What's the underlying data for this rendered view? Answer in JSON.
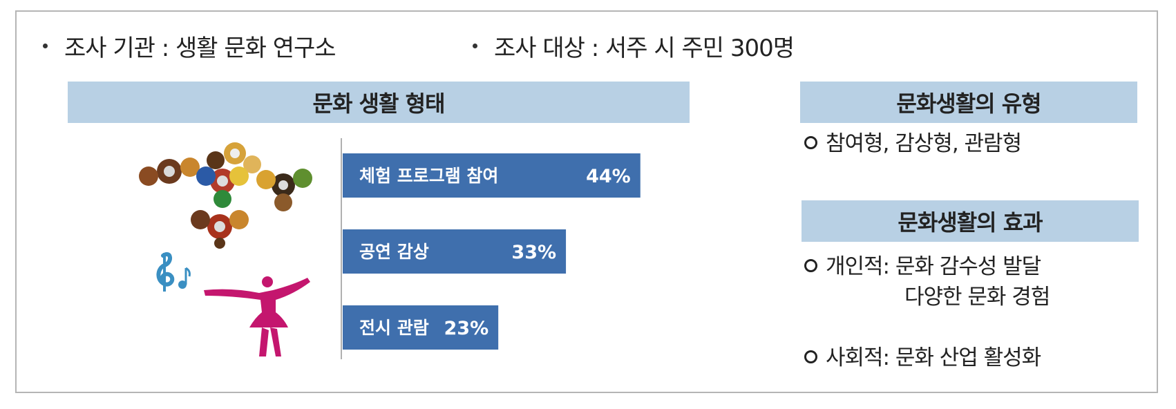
{
  "header": {
    "org": "조사 기관 : 생활 문화 연구소",
    "target": "조사 대상 : 서주 시 주민 300명"
  },
  "left_panel": {
    "title": "문화 생활 형태"
  },
  "chart_data": {
    "type": "bar",
    "orientation": "horizontal",
    "title": "문화 생활 형태",
    "categories": [
      "체험 프로그램 참여",
      "공연 감상",
      "전시 관람"
    ],
    "values": [
      44,
      33,
      23
    ],
    "value_labels": [
      "44%",
      "33%",
      "23%"
    ],
    "unit": "%",
    "xlabel": "",
    "ylabel": "",
    "xlim": [
      0,
      50
    ],
    "grid": false,
    "legend": "none",
    "bar_color": "#3f6fad",
    "label_color": "#ffffff"
  },
  "right_panel": {
    "types": {
      "title": "문화생활의 유형",
      "items": [
        "참여형,  감상형,  관람형"
      ]
    },
    "effects": {
      "title": "문화생활의 효과",
      "personal_label": "개인적: 문화 감수성 발달",
      "personal_second": "다양한 문화 경험",
      "social_label": "사회적: 문화 산업 활성화"
    }
  },
  "illustrations": {
    "spinners_icon": "fidget-spinners-icon",
    "music_icon": "music-notes-icon",
    "dancer_icon": "ballerina-icon"
  }
}
